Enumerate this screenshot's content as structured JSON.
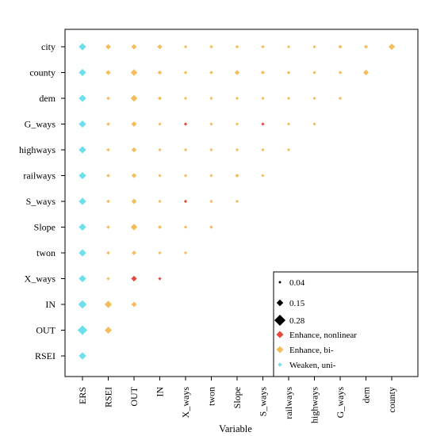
{
  "chart_data": {
    "type": "scatter",
    "title": "",
    "xlabel": "Variable",
    "ylabel": "",
    "x_categories": [
      "ERS",
      "RSEI",
      "OUT",
      "IN",
      "X_ways",
      "twon",
      "Slope",
      "S_ways",
      "railways",
      "highways",
      "G_ways",
      "dem",
      "county"
    ],
    "y_categories": [
      "city",
      "county",
      "dem",
      "G_ways",
      "highways",
      "railways",
      "S_ways",
      "Slope",
      "twon",
      "X_ways",
      "IN",
      "OUT",
      "RSEI"
    ],
    "legend": {
      "position": "bottom-right",
      "size_entries": [
        {
          "label": "0.04",
          "value": 0.04
        },
        {
          "label": "0.15",
          "value": 0.15
        },
        {
          "label": "0.28",
          "value": 0.28
        }
      ],
      "type_entries": [
        {
          "label": "Enhance, nonlinear",
          "key": "nonlinear"
        },
        {
          "label": "Enhance, bi-",
          "key": "bi"
        },
        {
          "label": "Weaken, uni-",
          "key": "uni"
        }
      ]
    },
    "colors": {
      "nonlinear": "#e8463a",
      "bi": "#f5bc5a",
      "uni": "#6ee0ec"
    },
    "points": [
      {
        "x": "ERS",
        "y": "city",
        "value": 0.17,
        "type": "uni"
      },
      {
        "x": "RSEI",
        "y": "city",
        "value": 0.11,
        "type": "bi"
      },
      {
        "x": "OUT",
        "y": "city",
        "value": 0.11,
        "type": "bi"
      },
      {
        "x": "IN",
        "y": "city",
        "value": 0.1,
        "type": "bi"
      },
      {
        "x": "X_ways",
        "y": "city",
        "value": 0.05,
        "type": "bi"
      },
      {
        "x": "twon",
        "y": "city",
        "value": 0.06,
        "type": "bi"
      },
      {
        "x": "Slope",
        "y": "city",
        "value": 0.06,
        "type": "bi"
      },
      {
        "x": "S_ways",
        "y": "city",
        "value": 0.06,
        "type": "bi"
      },
      {
        "x": "railways",
        "y": "city",
        "value": 0.05,
        "type": "bi"
      },
      {
        "x": "highways",
        "y": "city",
        "value": 0.05,
        "type": "bi"
      },
      {
        "x": "G_ways",
        "y": "city",
        "value": 0.07,
        "type": "bi"
      },
      {
        "x": "dem",
        "y": "city",
        "value": 0.07,
        "type": "bi"
      },
      {
        "x": "county",
        "y": "city",
        "value": 0.14,
        "type": "bi"
      },
      {
        "x": "ERS",
        "y": "county",
        "value": 0.17,
        "type": "uni"
      },
      {
        "x": "RSEI",
        "y": "county",
        "value": 0.1,
        "type": "bi"
      },
      {
        "x": "OUT",
        "y": "county",
        "value": 0.15,
        "type": "bi"
      },
      {
        "x": "IN",
        "y": "county",
        "value": 0.08,
        "type": "bi"
      },
      {
        "x": "X_ways",
        "y": "county",
        "value": 0.06,
        "type": "bi"
      },
      {
        "x": "twon",
        "y": "county",
        "value": 0.06,
        "type": "bi"
      },
      {
        "x": "Slope",
        "y": "county",
        "value": 0.1,
        "type": "bi"
      },
      {
        "x": "S_ways",
        "y": "county",
        "value": 0.07,
        "type": "bi"
      },
      {
        "x": "railways",
        "y": "county",
        "value": 0.06,
        "type": "bi"
      },
      {
        "x": "highways",
        "y": "county",
        "value": 0.06,
        "type": "bi"
      },
      {
        "x": "G_ways",
        "y": "county",
        "value": 0.06,
        "type": "bi"
      },
      {
        "x": "dem",
        "y": "county",
        "value": 0.12,
        "type": "bi"
      },
      {
        "x": "ERS",
        "y": "dem",
        "value": 0.17,
        "type": "uni"
      },
      {
        "x": "RSEI",
        "y": "dem",
        "value": 0.06,
        "type": "bi"
      },
      {
        "x": "OUT",
        "y": "dem",
        "value": 0.15,
        "type": "bi"
      },
      {
        "x": "IN",
        "y": "dem",
        "value": 0.07,
        "type": "bi"
      },
      {
        "x": "X_ways",
        "y": "dem",
        "value": 0.05,
        "type": "bi"
      },
      {
        "x": "twon",
        "y": "dem",
        "value": 0.05,
        "type": "bi"
      },
      {
        "x": "Slope",
        "y": "dem",
        "value": 0.05,
        "type": "bi"
      },
      {
        "x": "S_ways",
        "y": "dem",
        "value": 0.05,
        "type": "bi"
      },
      {
        "x": "railways",
        "y": "dem",
        "value": 0.05,
        "type": "bi"
      },
      {
        "x": "highways",
        "y": "dem",
        "value": 0.05,
        "type": "bi"
      },
      {
        "x": "G_ways",
        "y": "dem",
        "value": 0.05,
        "type": "bi"
      },
      {
        "x": "ERS",
        "y": "G_ways",
        "value": 0.17,
        "type": "uni"
      },
      {
        "x": "RSEI",
        "y": "G_ways",
        "value": 0.06,
        "type": "bi"
      },
      {
        "x": "OUT",
        "y": "G_ways",
        "value": 0.11,
        "type": "bi"
      },
      {
        "x": "IN",
        "y": "G_ways",
        "value": 0.05,
        "type": "bi"
      },
      {
        "x": "X_ways",
        "y": "G_ways",
        "value": 0.05,
        "type": "nonlinear"
      },
      {
        "x": "twon",
        "y": "G_ways",
        "value": 0.05,
        "type": "bi"
      },
      {
        "x": "Slope",
        "y": "G_ways",
        "value": 0.05,
        "type": "bi"
      },
      {
        "x": "S_ways",
        "y": "G_ways",
        "value": 0.05,
        "type": "nonlinear"
      },
      {
        "x": "railways",
        "y": "G_ways",
        "value": 0.05,
        "type": "bi"
      },
      {
        "x": "highways",
        "y": "G_ways",
        "value": 0.05,
        "type": "bi"
      },
      {
        "x": "ERS",
        "y": "highways",
        "value": 0.17,
        "type": "uni"
      },
      {
        "x": "RSEI",
        "y": "highways",
        "value": 0.06,
        "type": "bi"
      },
      {
        "x": "OUT",
        "y": "highways",
        "value": 0.1,
        "type": "bi"
      },
      {
        "x": "IN",
        "y": "highways",
        "value": 0.05,
        "type": "bi"
      },
      {
        "x": "X_ways",
        "y": "highways",
        "value": 0.05,
        "type": "bi"
      },
      {
        "x": "twon",
        "y": "highways",
        "value": 0.05,
        "type": "bi"
      },
      {
        "x": "Slope",
        "y": "highways",
        "value": 0.05,
        "type": "bi"
      },
      {
        "x": "S_ways",
        "y": "highways",
        "value": 0.05,
        "type": "bi"
      },
      {
        "x": "railways",
        "y": "highways",
        "value": 0.05,
        "type": "bi"
      },
      {
        "x": "ERS",
        "y": "railways",
        "value": 0.17,
        "type": "uni"
      },
      {
        "x": "RSEI",
        "y": "railways",
        "value": 0.06,
        "type": "bi"
      },
      {
        "x": "OUT",
        "y": "railways",
        "value": 0.1,
        "type": "bi"
      },
      {
        "x": "IN",
        "y": "railways",
        "value": 0.05,
        "type": "bi"
      },
      {
        "x": "X_ways",
        "y": "railways",
        "value": 0.05,
        "type": "bi"
      },
      {
        "x": "twon",
        "y": "railways",
        "value": 0.05,
        "type": "bi"
      },
      {
        "x": "Slope",
        "y": "railways",
        "value": 0.07,
        "type": "bi"
      },
      {
        "x": "S_ways",
        "y": "railways",
        "value": 0.05,
        "type": "bi"
      },
      {
        "x": "ERS",
        "y": "S_ways",
        "value": 0.17,
        "type": "uni"
      },
      {
        "x": "RSEI",
        "y": "S_ways",
        "value": 0.06,
        "type": "bi"
      },
      {
        "x": "OUT",
        "y": "S_ways",
        "value": 0.11,
        "type": "bi"
      },
      {
        "x": "IN",
        "y": "S_ways",
        "value": 0.05,
        "type": "bi"
      },
      {
        "x": "X_ways",
        "y": "S_ways",
        "value": 0.05,
        "type": "nonlinear"
      },
      {
        "x": "twon",
        "y": "S_ways",
        "value": 0.05,
        "type": "bi"
      },
      {
        "x": "Slope",
        "y": "S_ways",
        "value": 0.05,
        "type": "bi"
      },
      {
        "x": "ERS",
        "y": "Slope",
        "value": 0.17,
        "type": "uni"
      },
      {
        "x": "RSEI",
        "y": "Slope",
        "value": 0.06,
        "type": "bi"
      },
      {
        "x": "OUT",
        "y": "Slope",
        "value": 0.15,
        "type": "bi"
      },
      {
        "x": "IN",
        "y": "Slope",
        "value": 0.07,
        "type": "bi"
      },
      {
        "x": "X_ways",
        "y": "Slope",
        "value": 0.05,
        "type": "bi"
      },
      {
        "x": "twon",
        "y": "Slope",
        "value": 0.06,
        "type": "bi"
      },
      {
        "x": "ERS",
        "y": "twon",
        "value": 0.17,
        "type": "uni"
      },
      {
        "x": "RSEI",
        "y": "twon",
        "value": 0.06,
        "type": "bi"
      },
      {
        "x": "OUT",
        "y": "twon",
        "value": 0.09,
        "type": "bi"
      },
      {
        "x": "IN",
        "y": "twon",
        "value": 0.05,
        "type": "bi"
      },
      {
        "x": "X_ways",
        "y": "twon",
        "value": 0.05,
        "type": "bi"
      },
      {
        "x": "ERS",
        "y": "X_ways",
        "value": 0.17,
        "type": "uni"
      },
      {
        "x": "RSEI",
        "y": "X_ways",
        "value": 0.05,
        "type": "bi"
      },
      {
        "x": "OUT",
        "y": "X_ways",
        "value": 0.12,
        "type": "nonlinear"
      },
      {
        "x": "IN",
        "y": "X_ways",
        "value": 0.05,
        "type": "nonlinear"
      },
      {
        "x": "ERS",
        "y": "IN",
        "value": 0.2,
        "type": "uni"
      },
      {
        "x": "RSEI",
        "y": "IN",
        "value": 0.17,
        "type": "bi"
      },
      {
        "x": "OUT",
        "y": "IN",
        "value": 0.11,
        "type": "bi"
      },
      {
        "x": "ERS",
        "y": "OUT",
        "value": 0.24,
        "type": "uni"
      },
      {
        "x": "RSEI",
        "y": "OUT",
        "value": 0.16,
        "type": "bi"
      },
      {
        "x": "ERS",
        "y": "RSEI",
        "value": 0.17,
        "type": "uni"
      }
    ]
  }
}
